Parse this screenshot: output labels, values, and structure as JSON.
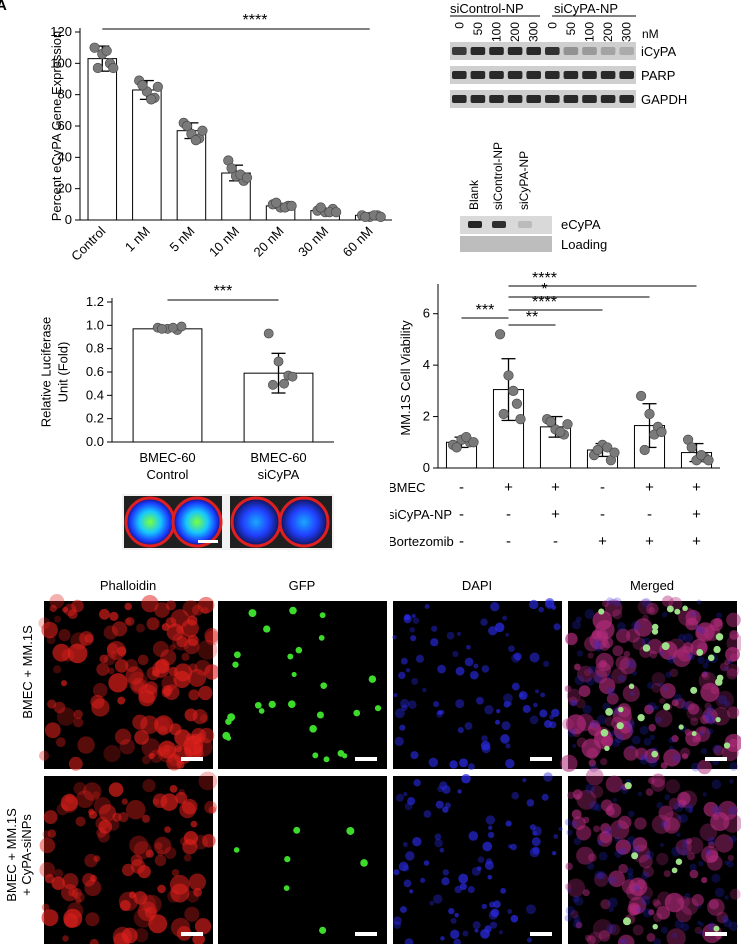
{
  "panel_letter": "A",
  "chart_data": [
    {
      "id": "egene",
      "type": "bar",
      "ylabel": "Percent eCyPA Gene Expression",
      "categories": [
        "Control",
        "1 nM",
        "5 nM",
        "10 nM",
        "20 nM",
        "30 nM",
        "60 nM"
      ],
      "values": [
        103,
        83,
        57,
        30,
        9,
        6,
        3
      ],
      "errors": [
        8,
        6,
        5,
        5,
        1.5,
        1.5,
        1
      ],
      "points": [
        [
          110,
          106,
          100,
          97,
          108,
          97
        ],
        [
          89,
          82,
          78,
          86,
          77,
          85
        ],
        [
          62,
          55,
          52,
          60,
          51,
          57
        ],
        [
          38,
          28,
          25,
          33,
          29,
          27
        ],
        [
          10,
          8,
          9,
          11,
          8,
          9
        ],
        [
          6,
          5,
          7,
          8,
          5,
          5
        ],
        [
          3,
          2,
          3,
          2,
          3,
          2
        ]
      ],
      "ylim": [
        0,
        120
      ],
      "yticks": [
        0,
        20,
        40,
        60,
        80,
        100,
        120
      ],
      "significance": "****"
    },
    {
      "id": "luc",
      "type": "bar",
      "ylabel": [
        "Relative Luciferase",
        "Unit (Fold)"
      ],
      "categories": [
        [
          "BMEC-60",
          "Control"
        ],
        [
          "BMEC-60",
          "siCyPA"
        ]
      ],
      "values": [
        0.97,
        0.59
      ],
      "errors": [
        0.02,
        0.17
      ],
      "points": [
        [
          0.98,
          0.97,
          0.96,
          0.97,
          0.98,
          0.99
        ],
        [
          0.93,
          0.69,
          0.57,
          0.49,
          0.5,
          0.56
        ]
      ],
      "ylim": [
        0,
        1.2
      ],
      "yticks": [
        "0.0",
        "0.2",
        "0.4",
        "0.6",
        "0.8",
        "1.0",
        "1.2"
      ],
      "significance": "***"
    },
    {
      "id": "viab",
      "type": "bar",
      "ylabel": "MM.1S Cell Viability",
      "values": [
        1.0,
        3.05,
        1.6,
        0.7,
        1.65,
        0.6
      ],
      "errors": [
        0.2,
        1.2,
        0.4,
        0.25,
        0.85,
        0.35
      ],
      "points": [
        [
          0.9,
          1.1,
          1.0,
          0.8,
          1.2,
          1.0
        ],
        [
          5.2,
          3.6,
          2.5,
          2.1,
          3.0,
          1.9
        ],
        [
          1.9,
          1.5,
          1.3,
          1.8,
          1.4,
          1.7
        ],
        [
          0.5,
          0.9,
          0.3,
          0.7,
          0.8,
          0.6
        ],
        [
          2.8,
          2.1,
          1.6,
          0.7,
          1.3,
          1.4
        ],
        [
          1.1,
          0.3,
          0.4,
          0.8,
          0.5,
          0.3
        ]
      ],
      "ylim": [
        0,
        7
      ],
      "yticks": [
        0,
        2,
        4,
        6
      ],
      "conditions": [
        {
          "label": "BMEC",
          "signs": [
            "-",
            "+",
            "+",
            "-",
            "+",
            "+"
          ]
        },
        {
          "label": "siCyPA-NP",
          "signs": [
            "-",
            "-",
            "+",
            "-",
            "-",
            "+"
          ]
        },
        {
          "label": "Bortezomib",
          "signs": [
            "-",
            "-",
            "-",
            "+",
            "+",
            "+"
          ]
        }
      ],
      "comparisons": [
        "***",
        "**",
        "****",
        "*",
        "****"
      ]
    }
  ],
  "western": {
    "group1": "siControl-NP",
    "group2": "siCyPA-NP",
    "lanes": [
      "0",
      "50",
      "100",
      "200",
      "300",
      "0",
      "50",
      "100",
      "200",
      "300"
    ],
    "unit": "nM",
    "bands": [
      "iCyPA",
      "PARP",
      "GAPDH"
    ]
  },
  "ewestern": {
    "lanes": [
      "Blank",
      "siControl-NP",
      "siCyPA-NP"
    ],
    "bands": [
      "eCyPA",
      "Loading"
    ]
  },
  "micro": {
    "columns": [
      "Phalloidin",
      "GFP",
      "DAPI",
      "Merged"
    ],
    "rows": [
      [
        "BMEC + MM.1S"
      ],
      [
        "BMEC + MM.1S",
        "+ CyPA-siNPs"
      ]
    ],
    "colors": {
      "phalloidin": "#e0201c",
      "gfp": "#3ddc2c",
      "dapi": "#2a2ae6",
      "merged": "#b02a7a"
    }
  }
}
